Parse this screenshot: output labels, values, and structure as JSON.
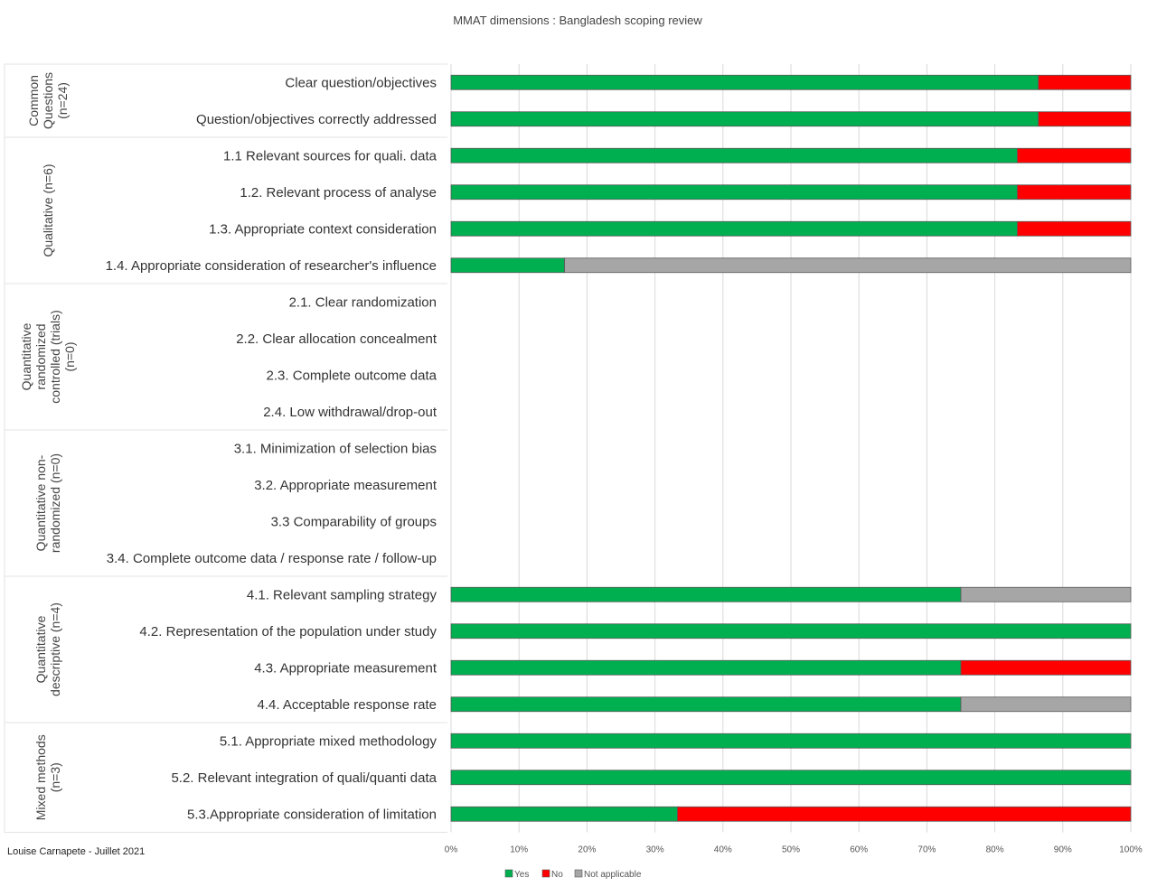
{
  "author_note": "Louise Carnapete - Juillet 2021",
  "colors": {
    "yes": "#00B050",
    "no": "#FF0000",
    "na": "#A6A6A6",
    "grid": "#D9D9D9",
    "border": "#595959"
  },
  "chart_data": {
    "type": "bar",
    "orientation": "horizontal",
    "stacked": "percent",
    "title": "MMAT dimensions : Bangladesh scoping review",
    "xlim": [
      0,
      100
    ],
    "xticks": [
      "0%",
      "10%",
      "20%",
      "30%",
      "40%",
      "50%",
      "60%",
      "70%",
      "80%",
      "90%",
      "100%"
    ],
    "grid": true,
    "legend_position": "bottom",
    "legend": [
      {
        "label": "Yes",
        "color": "#00B050"
      },
      {
        "label": "No",
        "color": "#FF0000"
      },
      {
        "label": "Not applicable",
        "color": "#A6A6A6"
      }
    ],
    "groups": [
      {
        "label_lines": [
          "Common",
          "Questions",
          "(n=24)"
        ],
        "row_count": 2
      },
      {
        "label_lines": [
          "Qualitative (n=6)"
        ],
        "row_count": 4
      },
      {
        "label_lines": [
          "Quantitative",
          "randomized",
          "controlled (trials)",
          "(n=0)"
        ],
        "row_count": 4
      },
      {
        "label_lines": [
          "Quantitative non-",
          "randomized (n=0)"
        ],
        "row_count": 4
      },
      {
        "label_lines": [
          "Quantitative",
          "descriptive (n=4)"
        ],
        "row_count": 4
      },
      {
        "label_lines": [
          "Mixed methods",
          "(n=3)"
        ],
        "row_count": 3
      }
    ],
    "categories": [
      "Clear question/objectives",
      "Question/objectives correctly addressed",
      "1.1 Relevant sources for quali. data",
      "1.2. Relevant process of analyse",
      "1.3. Appropriate context consideration",
      "1.4. Appropriate consideration of researcher's influence",
      "2.1. Clear randomization",
      "2.2. Clear allocation concealment",
      "2.3. Complete outcome data",
      "2.4. Low withdrawal/drop-out",
      "3.1. Minimization of selection bias",
      "3.2. Appropriate measurement",
      "3.3 Comparability of groups",
      "3.4. Complete outcome data / response rate / follow-up",
      "4.1. Relevant sampling strategy",
      "4.2. Representation of the population under study",
      "4.3. Appropriate measurement",
      "4.4. Acceptable response rate",
      "5.1. Appropriate mixed methodology",
      "5.2. Relevant integration of quali/quanti data",
      "5.3.Appropriate consideration of limitation"
    ],
    "series": [
      {
        "name": "Yes",
        "color": "#00B050",
        "values": [
          86.4,
          86.4,
          83.3,
          83.3,
          83.3,
          16.7,
          0,
          0,
          0,
          0,
          0,
          0,
          0,
          0,
          75,
          100,
          75,
          75,
          100,
          100,
          33.3
        ]
      },
      {
        "name": "No",
        "color": "#FF0000",
        "values": [
          13.6,
          13.6,
          16.7,
          16.7,
          16.7,
          0,
          0,
          0,
          0,
          0,
          0,
          0,
          0,
          0,
          0,
          0,
          25,
          0,
          0,
          0,
          66.7
        ]
      },
      {
        "name": "Not applicable",
        "color": "#A6A6A6",
        "values": [
          0,
          0,
          0,
          0,
          0,
          83.3,
          0,
          0,
          0,
          0,
          0,
          0,
          0,
          0,
          25,
          0,
          0,
          25,
          0,
          0,
          0
        ]
      }
    ]
  }
}
